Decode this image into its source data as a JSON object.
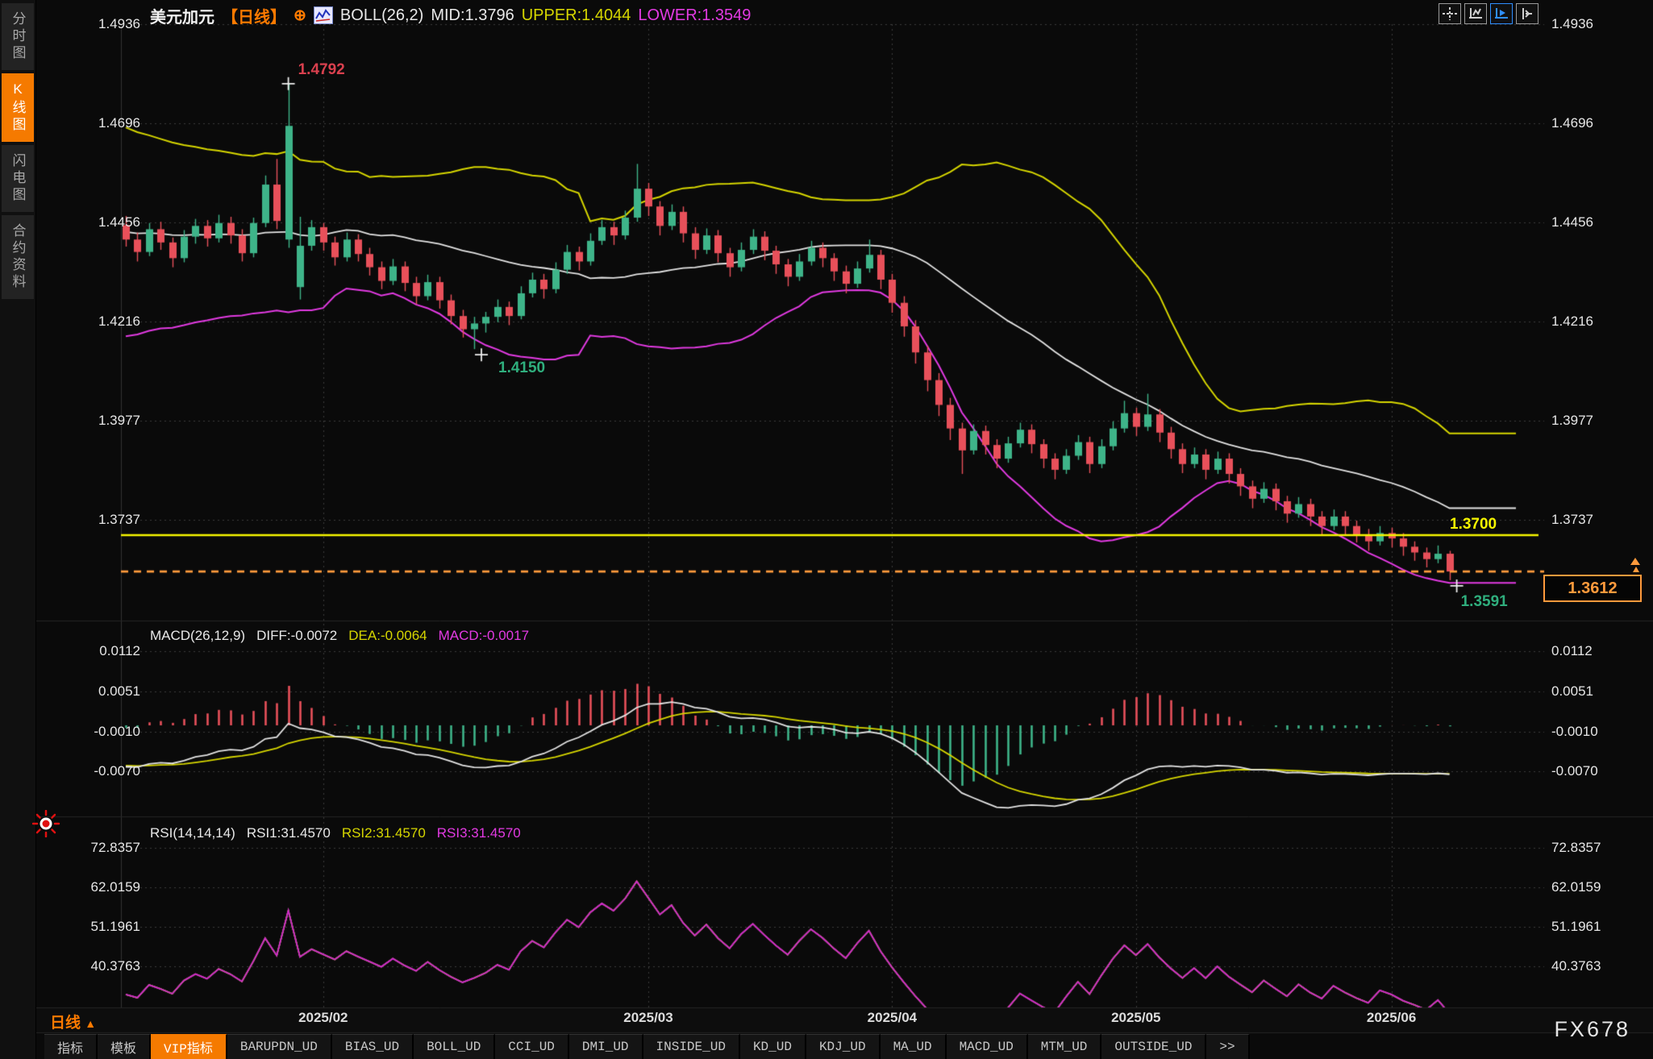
{
  "header": {
    "symbol": "美元加元",
    "timeframe_tag": "【日线】",
    "plus_icon": "⊕",
    "indicator_label": "BOLL(26,2)",
    "mid_label": "MID:1.3796",
    "upper_label": "UPPER:1.4044",
    "lower_label": "LOWER:1.3549"
  },
  "sidebar": {
    "items": [
      {
        "label": "分时图",
        "active": false
      },
      {
        "label": "K线图",
        "active": true
      },
      {
        "label": "闪电图",
        "active": false
      },
      {
        "label": "合约资料",
        "active": false
      }
    ]
  },
  "toolbar": {
    "buttons": [
      {
        "name": "crosshair-tool-icon",
        "active": false
      },
      {
        "name": "axis-scale-left-icon",
        "active": false
      },
      {
        "name": "axis-scale-right-icon",
        "active": true
      },
      {
        "name": "panel-layout-icon",
        "active": false
      }
    ]
  },
  "price_axis": [
    "1.4936",
    "1.4696",
    "1.4456",
    "1.4216",
    "1.3977",
    "1.3737"
  ],
  "macd_panel": {
    "label": "MACD(26,12,9)",
    "diff_label": "DIFF:-0.0072",
    "dea_label": "DEA:-0.0064",
    "macd_label": "MACD:-0.0017",
    "axis": [
      "0.0112",
      "0.0051",
      "-0.0010",
      "-0.0070"
    ]
  },
  "rsi_panel": {
    "label": "RSI(14,14,14)",
    "rsi1_label": "RSI1:31.4570",
    "rsi2_label": "RSI2:31.4570",
    "rsi3_label": "RSI3:31.4570",
    "axis": [
      "72.8357",
      "62.0159",
      "51.1961",
      "40.3763"
    ]
  },
  "annotations": {
    "swing_high": "1.4792",
    "swing_low_feb": "1.4150",
    "swing_low_jun": "1.3591",
    "hline_label": "1.3700",
    "last_price": "1.3612"
  },
  "bottom": {
    "timeframe": "日线",
    "timeframe_arrow": "▲",
    "watermark": "FX678",
    "tabs": [
      {
        "label": "指标",
        "active": false
      },
      {
        "label": "模板",
        "active": false
      },
      {
        "label": "VIP指标",
        "active": true
      },
      {
        "label": "BARUPDN_UD",
        "active": false
      },
      {
        "label": "BIAS_UD",
        "active": false
      },
      {
        "label": "BOLL_UD",
        "active": false
      },
      {
        "label": "CCI_UD",
        "active": false
      },
      {
        "label": "DMI_UD",
        "active": false
      },
      {
        "label": "INSIDE_UD",
        "active": false
      },
      {
        "label": "KD_UD",
        "active": false
      },
      {
        "label": "KDJ_UD",
        "active": false
      },
      {
        "label": "MA_UD",
        "active": false
      },
      {
        "label": "MACD_UD",
        "active": false
      },
      {
        "label": "MTM_UD",
        "active": false
      },
      {
        "label": "OUTSIDE_UD",
        "active": false
      },
      {
        "label": ">>",
        "active": false
      }
    ]
  },
  "colors": {
    "up": "#3eb489",
    "down": "#e8505a",
    "boll_upper": "#d6d600",
    "boll_mid": "#e4e4e4",
    "boll_lower": "#e23ae2",
    "hline": "#f5f500",
    "last_price_line": "#ff9a3c",
    "grid": "#3c3c3c",
    "macd_pos": "#e8505a",
    "macd_neg": "#3eb489",
    "diff_line": "#e4e4e4",
    "dea_line": "#d6d600",
    "rsi_line": "#cc22cc",
    "accent": "#f57a00"
  },
  "chart_data": {
    "type": "candlestick",
    "title": "美元加元 日线 (USD/CAD daily) with BOLL(26,2), MACD(26,12,9), RSI(14,14,14)",
    "price_gridlines": [
      1.4936,
      1.4696,
      1.4456,
      1.4216,
      1.3977,
      1.3737
    ],
    "macd_gridlines": [
      0.0112,
      0.0051,
      -0.001,
      -0.007
    ],
    "rsi_gridlines": [
      72.8357,
      62.0159,
      51.1961,
      40.3763
    ],
    "hline": 1.37,
    "last_price": 1.3612,
    "months": [
      {
        "label": "2025/02",
        "index": 17
      },
      {
        "label": "2025/03",
        "index": 45
      },
      {
        "label": "2025/04",
        "index": 66
      },
      {
        "label": "2025/05",
        "index": 87
      },
      {
        "label": "2025/06",
        "index": 109
      }
    ],
    "marked_points": [
      {
        "text": "1.4792",
        "index": 14,
        "price": 1.4792,
        "kind": "high"
      },
      {
        "text": "1.4150",
        "index": 30,
        "price": 1.415,
        "kind": "low"
      },
      {
        "text": "1.3591",
        "index": 114,
        "price": 1.3591,
        "kind": "low"
      }
    ],
    "warmup_closes": [
      1.466,
      1.461,
      1.45,
      1.434,
      1.42,
      1.428,
      1.443,
      1.456,
      1.441,
      1.431,
      1.445,
      1.447
    ],
    "candles": [
      [
        1.445,
        1.4472,
        1.4398,
        1.4415
      ],
      [
        1.4415,
        1.4432,
        1.4362,
        1.4385
      ],
      [
        1.4385,
        1.4455,
        1.4375,
        1.444
      ],
      [
        1.444,
        1.4458,
        1.439,
        1.4408
      ],
      [
        1.4408,
        1.442,
        1.4348,
        1.437
      ],
      [
        1.437,
        1.4438,
        1.436,
        1.4422
      ],
      [
        1.4422,
        1.4465,
        1.4405,
        1.4448
      ],
      [
        1.4448,
        1.4462,
        1.4398,
        1.4418
      ],
      [
        1.4418,
        1.4475,
        1.4408,
        1.4455
      ],
      [
        1.4455,
        1.447,
        1.4405,
        1.4425
      ],
      [
        1.4425,
        1.444,
        1.4362,
        1.4382
      ],
      [
        1.4382,
        1.4468,
        1.4372,
        1.4455
      ],
      [
        1.4455,
        1.457,
        1.4445,
        1.4548
      ],
      [
        1.4548,
        1.461,
        1.444,
        1.446
      ],
      [
        1.4415,
        1.4792,
        1.4395,
        1.469
      ],
      [
        1.43,
        1.447,
        1.427,
        1.44
      ],
      [
        1.44,
        1.4462,
        1.4388,
        1.4445
      ],
      [
        1.4445,
        1.4455,
        1.4388,
        1.4408
      ],
      [
        1.4408,
        1.4422,
        1.4352,
        1.4372
      ],
      [
        1.4372,
        1.4432,
        1.4362,
        1.4415
      ],
      [
        1.4415,
        1.4428,
        1.4362,
        1.438
      ],
      [
        1.438,
        1.4395,
        1.4328,
        1.4348
      ],
      [
        1.4348,
        1.4362,
        1.4295,
        1.4315
      ],
      [
        1.4315,
        1.4368,
        1.4305,
        1.435
      ],
      [
        1.435,
        1.4362,
        1.429,
        1.431
      ],
      [
        1.431,
        1.4325,
        1.4258,
        1.4278
      ],
      [
        1.4278,
        1.433,
        1.4268,
        1.4312
      ],
      [
        1.4312,
        1.4325,
        1.4248,
        1.4268
      ],
      [
        1.4268,
        1.4282,
        1.421,
        1.423
      ],
      [
        1.423,
        1.4245,
        1.4178,
        1.4198
      ],
      [
        1.4198,
        1.4228,
        1.415,
        1.4212
      ],
      [
        1.4212,
        1.424,
        1.419,
        1.4228
      ],
      [
        1.4228,
        1.427,
        1.4215,
        1.4252
      ],
      [
        1.4252,
        1.4265,
        1.4208,
        1.423
      ],
      [
        1.423,
        1.4302,
        1.4222,
        1.4285
      ],
      [
        1.4285,
        1.4335,
        1.4275,
        1.4318
      ],
      [
        1.4318,
        1.4332,
        1.4272,
        1.4295
      ],
      [
        1.4295,
        1.436,
        1.4285,
        1.4342
      ],
      [
        1.4342,
        1.4402,
        1.4332,
        1.4385
      ],
      [
        1.4385,
        1.4398,
        1.434,
        1.4362
      ],
      [
        1.4362,
        1.443,
        1.4352,
        1.4412
      ],
      [
        1.4412,
        1.4462,
        1.4402,
        1.4445
      ],
      [
        1.4445,
        1.4458,
        1.4402,
        1.4425
      ],
      [
        1.4425,
        1.4485,
        1.4415,
        1.4468
      ],
      [
        1.4468,
        1.4598,
        1.4458,
        1.4538
      ],
      [
        1.4538,
        1.4552,
        1.4472,
        1.4495
      ],
      [
        1.4495,
        1.4508,
        1.4425,
        1.4448
      ],
      [
        1.4448,
        1.45,
        1.4438,
        1.4482
      ],
      [
        1.4482,
        1.4495,
        1.4408,
        1.443
      ],
      [
        1.443,
        1.4445,
        1.4368,
        1.439
      ],
      [
        1.439,
        1.4442,
        1.438,
        1.4425
      ],
      [
        1.4425,
        1.4438,
        1.436,
        1.4382
      ],
      [
        1.4382,
        1.4395,
        1.4325,
        1.4348
      ],
      [
        1.4348,
        1.4408,
        1.4338,
        1.439
      ],
      [
        1.439,
        1.444,
        1.438,
        1.4422
      ],
      [
        1.4422,
        1.4435,
        1.4365,
        1.4388
      ],
      [
        1.4388,
        1.44,
        1.4332,
        1.4355
      ],
      [
        1.4355,
        1.4368,
        1.4302,
        1.4325
      ],
      [
        1.4325,
        1.438,
        1.4315,
        1.4362
      ],
      [
        1.4362,
        1.4412,
        1.4352,
        1.4395
      ],
      [
        1.4395,
        1.4408,
        1.4348,
        1.437
      ],
      [
        1.437,
        1.4382,
        1.4315,
        1.4338
      ],
      [
        1.4338,
        1.4352,
        1.4285,
        1.4308
      ],
      [
        1.4308,
        1.4362,
        1.4298,
        1.4345
      ],
      [
        1.4345,
        1.4415,
        1.4335,
        1.4378
      ],
      [
        1.4378,
        1.439,
        1.4295,
        1.4318
      ],
      [
        1.4318,
        1.4332,
        1.4238,
        1.4262
      ],
      [
        1.4262,
        1.4278,
        1.418,
        1.4205
      ],
      [
        1.4205,
        1.422,
        1.4115,
        1.4142
      ],
      [
        1.4142,
        1.4158,
        1.4048,
        1.4075
      ],
      [
        1.4075,
        1.4092,
        1.3988,
        1.4015
      ],
      [
        1.4015,
        1.4032,
        1.393,
        1.3958
      ],
      [
        1.3958,
        1.3972,
        1.3848,
        1.3905
      ],
      [
        1.3905,
        1.3968,
        1.3895,
        1.3952
      ],
      [
        1.3952,
        1.3965,
        1.3895,
        1.3918
      ],
      [
        1.3918,
        1.3932,
        1.3862,
        1.3885
      ],
      [
        1.3885,
        1.3938,
        1.3875,
        1.3922
      ],
      [
        1.3922,
        1.3972,
        1.3912,
        1.3955
      ],
      [
        1.3955,
        1.3968,
        1.3898,
        1.392
      ],
      [
        1.392,
        1.3932,
        1.3862,
        1.3885
      ],
      [
        1.3885,
        1.3898,
        1.3835,
        1.3858
      ],
      [
        1.3858,
        1.3908,
        1.3848,
        1.3892
      ],
      [
        1.3892,
        1.3942,
        1.3882,
        1.3925
      ],
      [
        1.3925,
        1.3938,
        1.385,
        1.3872
      ],
      [
        1.3872,
        1.3932,
        1.3862,
        1.3915
      ],
      [
        1.3915,
        1.3975,
        1.3905,
        1.3958
      ],
      [
        1.3958,
        1.4025,
        1.3948,
        1.3995
      ],
      [
        1.3995,
        1.4008,
        1.394,
        1.3962
      ],
      [
        1.3962,
        1.4042,
        1.3952,
        1.3992
      ],
      [
        1.3992,
        1.4005,
        1.3925,
        1.3948
      ],
      [
        1.3948,
        1.3962,
        1.3885,
        1.3908
      ],
      [
        1.3908,
        1.3922,
        1.385,
        1.3872
      ],
      [
        1.3872,
        1.3912,
        1.3862,
        1.3895
      ],
      [
        1.3895,
        1.3908,
        1.3835,
        1.3858
      ],
      [
        1.3858,
        1.3902,
        1.3848,
        1.3885
      ],
      [
        1.3885,
        1.3898,
        1.3825,
        1.3848
      ],
      [
        1.3848,
        1.3862,
        1.3795,
        1.3818
      ],
      [
        1.3818,
        1.3832,
        1.3765,
        1.3788
      ],
      [
        1.3788,
        1.3828,
        1.3778,
        1.3812
      ],
      [
        1.3812,
        1.3825,
        1.376,
        1.3782
      ],
      [
        1.3782,
        1.3795,
        1.373,
        1.3752
      ],
      [
        1.3752,
        1.3792,
        1.3742,
        1.3775
      ],
      [
        1.3775,
        1.3788,
        1.3722,
        1.3745
      ],
      [
        1.3745,
        1.3758,
        1.37,
        1.3722
      ],
      [
        1.3722,
        1.3762,
        1.3712,
        1.3745
      ],
      [
        1.3745,
        1.3758,
        1.37,
        1.3722
      ],
      [
        1.3722,
        1.3735,
        1.3682,
        1.3702
      ],
      [
        1.3702,
        1.3715,
        1.3662,
        1.3685
      ],
      [
        1.3685,
        1.3722,
        1.3675,
        1.3705
      ],
      [
        1.3705,
        1.3718,
        1.367,
        1.3692
      ],
      [
        1.3692,
        1.3705,
        1.365,
        1.3672
      ],
      [
        1.3672,
        1.3685,
        1.3638,
        1.3658
      ],
      [
        1.3658,
        1.367,
        1.3622,
        1.3642
      ],
      [
        1.3642,
        1.3675,
        1.3632,
        1.3655
      ],
      [
        1.3655,
        1.3662,
        1.3591,
        1.3612
      ]
    ]
  }
}
